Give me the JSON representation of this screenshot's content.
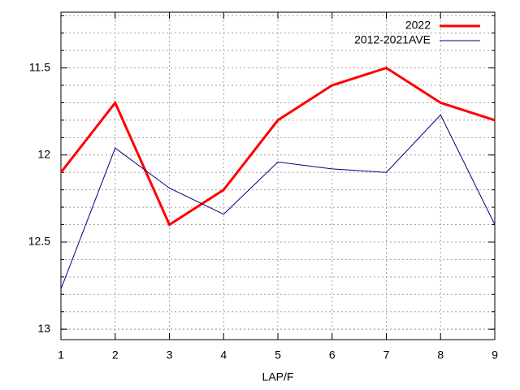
{
  "chart_data": {
    "type": "line",
    "xlabel": "LAP/F",
    "x": [
      1,
      2,
      3,
      4,
      5,
      6,
      7,
      8,
      9
    ],
    "series": [
      {
        "name": "2022",
        "color": "#ff0000",
        "values": [
          12.1,
          11.7,
          12.4,
          12.2,
          11.8,
          11.6,
          11.5,
          11.7,
          11.8
        ]
      },
      {
        "name": "2012-2021AVE",
        "color": "#000080",
        "values": [
          12.77,
          11.96,
          12.19,
          12.34,
          12.04,
          12.08,
          12.1,
          11.77,
          12.4
        ]
      }
    ],
    "xlim": [
      1,
      9
    ],
    "xticks": [
      1,
      2,
      3,
      4,
      5,
      6,
      7,
      8,
      9
    ],
    "ylim": [
      11.18,
      13.06
    ],
    "y_reversed": true,
    "yticks": [
      11.5,
      12,
      12.5,
      13
    ],
    "yminorticks": [
      11.2,
      11.3,
      11.4,
      11.6,
      11.7,
      11.8,
      11.9,
      12.1,
      12.2,
      12.3,
      12.4,
      12.6,
      12.7,
      12.8,
      12.9,
      13.0
    ],
    "grid": true,
    "legend": "top-right"
  }
}
